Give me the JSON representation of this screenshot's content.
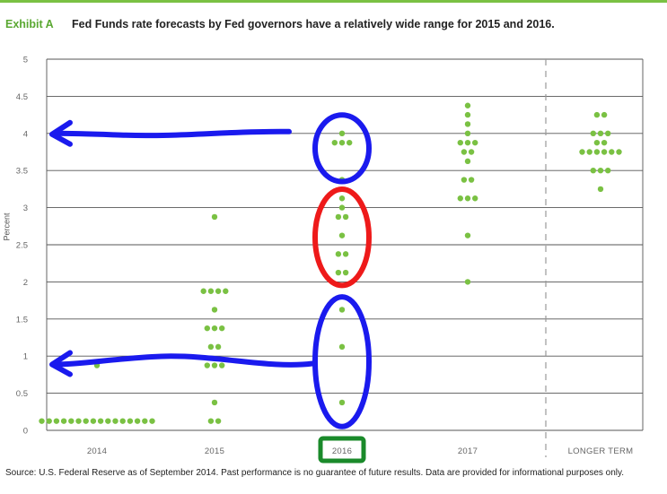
{
  "exhibit_label": "Exhibit A",
  "chart_data": {
    "type": "scatter",
    "title": "Fed Funds rate forecasts by Fed governors have a relatively wide range for 2015 and 2016.",
    "ylabel": "Percent",
    "ylim": [
      0,
      5
    ],
    "yticks": [
      "0",
      "0.5",
      "1",
      "1.5",
      "2",
      "2.5",
      "3",
      "3.5",
      "4",
      "4.5",
      "5"
    ],
    "categories": [
      "2014",
      "2015",
      "2016",
      "2017",
      "LONGER TERM"
    ],
    "grid": true,
    "points": [
      {
        "category": "2014",
        "y": 0.125,
        "count": 16
      },
      {
        "category": "2014",
        "y": 0.875,
        "count": 1
      },
      {
        "category": "2015",
        "y": 0.125,
        "count": 2
      },
      {
        "category": "2015",
        "y": 0.375,
        "count": 1
      },
      {
        "category": "2015",
        "y": 0.875,
        "count": 3
      },
      {
        "category": "2015",
        "y": 1.125,
        "count": 2
      },
      {
        "category": "2015",
        "y": 1.375,
        "count": 3
      },
      {
        "category": "2015",
        "y": 1.625,
        "count": 1
      },
      {
        "category": "2015",
        "y": 1.875,
        "count": 4
      },
      {
        "category": "2015",
        "y": 2.875,
        "count": 1
      },
      {
        "category": "2016",
        "y": 0.375,
        "count": 1
      },
      {
        "category": "2016",
        "y": 1.125,
        "count": 1
      },
      {
        "category": "2016",
        "y": 1.625,
        "count": 1
      },
      {
        "category": "2016",
        "y": 2.125,
        "count": 2
      },
      {
        "category": "2016",
        "y": 2.375,
        "count": 2
      },
      {
        "category": "2016",
        "y": 2.625,
        "count": 1
      },
      {
        "category": "2016",
        "y": 2.875,
        "count": 2
      },
      {
        "category": "2016",
        "y": 3.0,
        "count": 1
      },
      {
        "category": "2016",
        "y": 3.125,
        "count": 1
      },
      {
        "category": "2016",
        "y": 3.375,
        "count": 1
      },
      {
        "category": "2016",
        "y": 3.875,
        "count": 3
      },
      {
        "category": "2016",
        "y": 4.0,
        "count": 1
      },
      {
        "category": "2017",
        "y": 2.0,
        "count": 1
      },
      {
        "category": "2017",
        "y": 2.625,
        "count": 1
      },
      {
        "category": "2017",
        "y": 3.125,
        "count": 3
      },
      {
        "category": "2017",
        "y": 3.375,
        "count": 2
      },
      {
        "category": "2017",
        "y": 3.625,
        "count": 1
      },
      {
        "category": "2017",
        "y": 3.75,
        "count": 2
      },
      {
        "category": "2017",
        "y": 3.875,
        "count": 3
      },
      {
        "category": "2017",
        "y": 4.0,
        "count": 1
      },
      {
        "category": "2017",
        "y": 4.125,
        "count": 1
      },
      {
        "category": "2017",
        "y": 4.25,
        "count": 1
      },
      {
        "category": "2017",
        "y": 4.375,
        "count": 1
      },
      {
        "category": "LONGER TERM",
        "y": 3.25,
        "count": 1
      },
      {
        "category": "LONGER TERM",
        "y": 3.5,
        "count": 3
      },
      {
        "category": "LONGER TERM",
        "y": 3.75,
        "count": 6
      },
      {
        "category": "LONGER TERM",
        "y": 3.875,
        "count": 2
      },
      {
        "category": "LONGER TERM",
        "y": 4.0,
        "count": 3
      },
      {
        "category": "LONGER TERM",
        "y": 4.25,
        "count": 2
      }
    ],
    "annotations": {
      "arrows": [
        {
          "color": "#1a1aee",
          "y": 4.0,
          "from_category": "2016",
          "to": "y-axis"
        },
        {
          "color": "#1a1aee",
          "y": 0.9,
          "from_category": "2016",
          "to": "y-axis"
        }
      ],
      "ellipses": [
        {
          "color": "#1a1aee",
          "category": "2016",
          "y_range": [
            3.4,
            4.2
          ]
        },
        {
          "color": "#ee1a1a",
          "category": "2016",
          "y_range": [
            2.0,
            3.2
          ]
        },
        {
          "color": "#1a1aee",
          "category": "2016",
          "y_range": [
            0.1,
            1.75
          ]
        }
      ],
      "highlight_box": {
        "color": "#1a8a2a",
        "category": "2016"
      }
    },
    "colors": {
      "dots": "#7ac143",
      "grid": "#555555",
      "divider": "#999999"
    }
  },
  "source_text": "Source: U.S. Federal Reserve as of September 2014. Past performance is no guarantee of future results. Data are provided for informational purposes only."
}
